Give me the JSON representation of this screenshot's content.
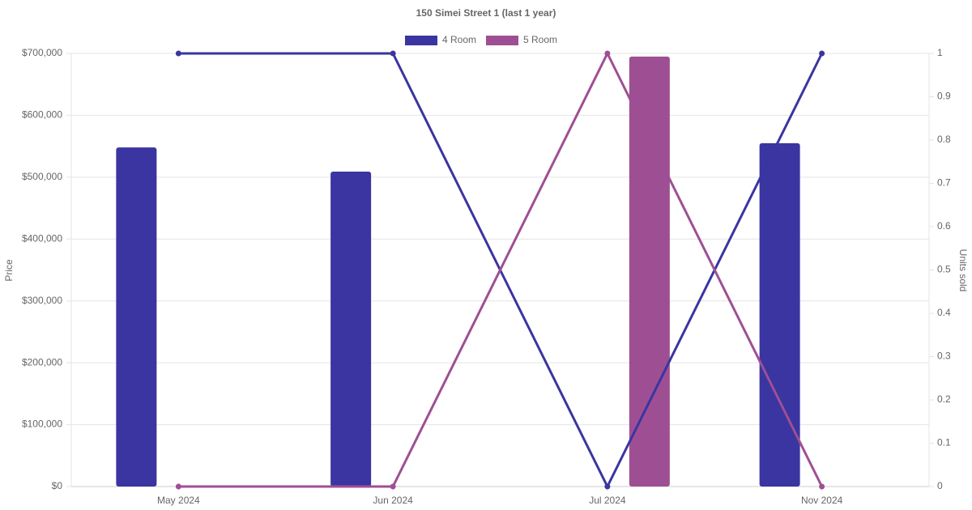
{
  "chart_data": {
    "type": "bar-line",
    "title": "150 Simei Street 1 (last 1 year)",
    "y_label": "Price",
    "y2_label": "Units sold",
    "categories": [
      "May 2024",
      "Jun 2024",
      "Jul 2024",
      "Nov 2024"
    ],
    "series": [
      {
        "name": "4 Room",
        "color": "#3a35a0",
        "values": [
          548000,
          509000,
          null,
          555000
        ],
        "y2_values": [
          1,
          1,
          0,
          1
        ]
      },
      {
        "name": "5 Room",
        "color": "#9e4f94",
        "values": [
          null,
          null,
          695000,
          null
        ],
        "y2_values": [
          0,
          0,
          1,
          0
        ]
      }
    ],
    "ylim": [
      0,
      700000
    ],
    "yticks": [
      {
        "value": 0,
        "label": "$0"
      },
      {
        "value": 100000,
        "label": "$100,000"
      },
      {
        "value": 200000,
        "label": "$200,000"
      },
      {
        "value": 300000,
        "label": "$300,000"
      },
      {
        "value": 400000,
        "label": "$400,000"
      },
      {
        "value": 500000,
        "label": "$500,000"
      },
      {
        "value": 600000,
        "label": "$600,000"
      },
      {
        "value": 700000,
        "label": "$700,000"
      }
    ],
    "y2lim": [
      0,
      1
    ],
    "y2ticks": [
      0,
      0.1,
      0.2,
      0.3,
      0.4,
      0.5,
      0.6,
      0.7,
      0.8,
      0.9,
      1
    ],
    "grid": true,
    "legend": "top"
  }
}
